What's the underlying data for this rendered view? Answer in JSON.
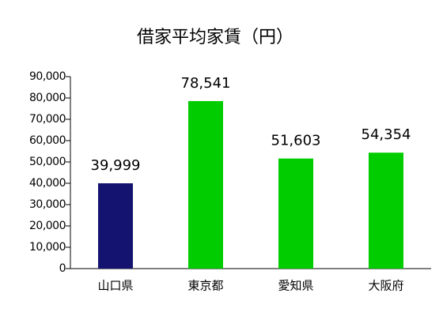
{
  "chart_data": {
    "type": "bar",
    "title": "借家平均家賃（円）",
    "categories": [
      "山口県",
      "東京都",
      "愛知県",
      "大阪府"
    ],
    "values": [
      39999,
      78541,
      51603,
      54354
    ],
    "value_labels": [
      "39,999",
      "78,541",
      "51,603",
      "54,354"
    ],
    "colors": [
      "#141470",
      "#00cc00",
      "#00cc00",
      "#00cc00"
    ],
    "ylim": [
      0,
      90000
    ],
    "yticks": [
      0,
      {
        "value": 10000,
        "label": "10,000"
      },
      {
        "value": 20000,
        "label": "20,000"
      },
      {
        "value": 30000,
        "label": "30,000"
      },
      {
        "value": 40000,
        "label": "40,000"
      },
      {
        "value": 50000,
        "label": "50,000"
      },
      {
        "value": 60000,
        "label": "60,000"
      },
      {
        "value": 70000,
        "label": "70,000"
      },
      {
        "value": 80000,
        "label": "80,000"
      },
      {
        "value": 90000,
        "label": "90,000"
      }
    ]
  }
}
